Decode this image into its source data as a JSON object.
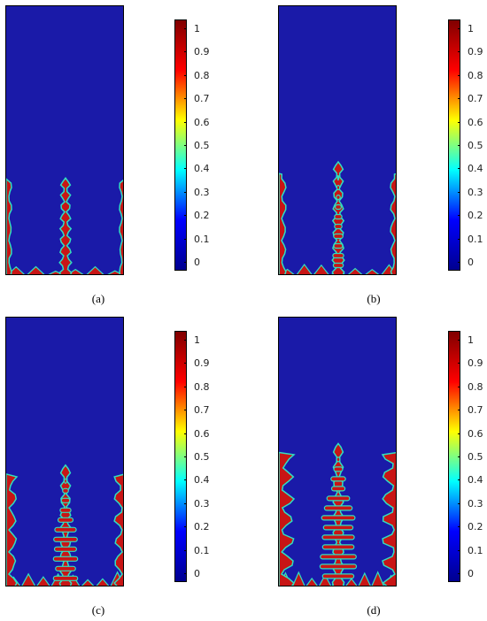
{
  "panels": [
    {
      "id": "a",
      "label": "(a)",
      "front_level": 0.35,
      "side_level": 0.36
    },
    {
      "id": "b",
      "label": "(b)",
      "front_level": 0.41,
      "side_level": 0.38
    },
    {
      "id": "c",
      "label": "(c)",
      "front_level": 0.44,
      "side_level": 0.42
    },
    {
      "id": "d",
      "label": "(d)",
      "front_level": 0.52,
      "side_level": 0.5
    }
  ],
  "colorbar": {
    "ticks": [
      "0",
      "0.1",
      "0.2",
      "0.3",
      "0.4",
      "0.5",
      "0.6",
      "0.7",
      "0.8",
      "0.9",
      "1"
    ],
    "min": 0,
    "max": 1,
    "colormap": [
      "#00008f",
      "#0000ff",
      "#00ffff",
      "#ffff00",
      "#ff0000",
      "#800000"
    ]
  },
  "colors": {
    "background_phase": "#1a1aa8",
    "solid_phase": "#c81515",
    "interface": "#30e0c0"
  }
}
